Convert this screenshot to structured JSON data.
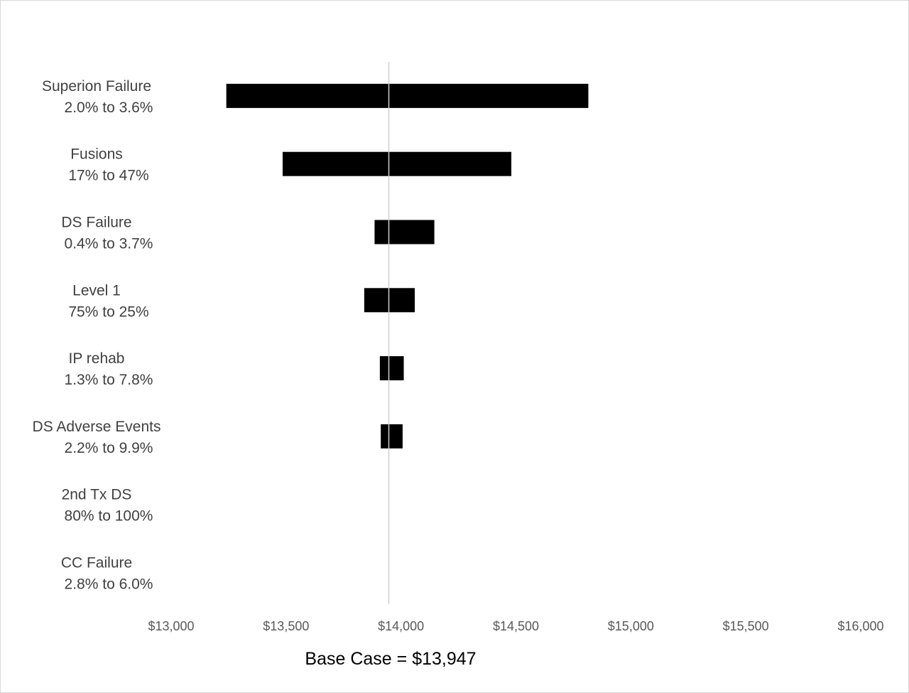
{
  "chart_data": {
    "type": "bar",
    "orientation": "horizontal",
    "subtype": "tornado",
    "base_case_value": 13947,
    "base_case_label": "Base Case = $13,947",
    "xlim": [
      13000,
      16000
    ],
    "xticks": [
      13000,
      13500,
      14000,
      14500,
      15000,
      15500,
      16000
    ],
    "xtick_labels": [
      "$13,000",
      "$13,500",
      "$14,000",
      "$14,500",
      "$15,000",
      "$15,500",
      "$16,000"
    ],
    "bar_color": "#000000",
    "base_line_color": "#d0d0d0",
    "grid": false,
    "categories": [
      {
        "name": "Superion Failure",
        "range": "2.0% to 3.6%",
        "low": 13240,
        "high": 14815
      },
      {
        "name": "Fusions",
        "range": "17% to 47%",
        "low": 13485,
        "high": 14480
      },
      {
        "name": "DS Failure",
        "range": "0.4% to 3.7%",
        "low": 13885,
        "high": 14145
      },
      {
        "name": "Level 1",
        "range": "75% to 25%",
        "low": 13840,
        "high": 14060
      },
      {
        "name": "IP rehab",
        "range": "1.3% to 7.8%",
        "low": 13908,
        "high": 14012
      },
      {
        "name": "DS Adverse Events",
        "range": "2.2% to 9.9%",
        "low": 13912,
        "high": 14007
      },
      {
        "name": "2nd Tx DS",
        "range": "80% to 100%",
        "low": 13947,
        "high": 13947
      },
      {
        "name": "CC Failure",
        "range": "2.8% to 6.0%",
        "low": 13947,
        "high": 13947
      }
    ]
  }
}
